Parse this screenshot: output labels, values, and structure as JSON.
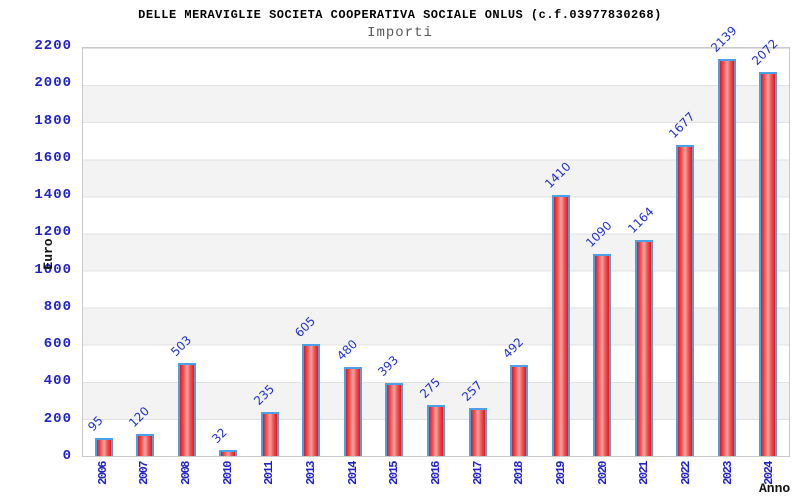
{
  "chart_data": {
    "type": "bar",
    "title": "DELLE MERAVIGLIE SOCIETA COOPERATIVA SOCIALE ONLUS (c.f.03977830268)",
    "subtitle": "Importi",
    "xlabel": "Anno",
    "ylabel": "Euro",
    "categories": [
      "2006",
      "2007",
      "2008",
      "2010",
      "2011",
      "2013",
      "2014",
      "2015",
      "2016",
      "2017",
      "2018",
      "2019",
      "2020",
      "2021",
      "2022",
      "2023",
      "2024"
    ],
    "values": [
      95,
      120,
      503,
      32,
      235,
      605,
      480,
      393,
      275,
      257,
      492,
      1410,
      1090,
      1164,
      1677,
      2139,
      2072
    ],
    "ylim": [
      0,
      2200
    ],
    "ytick_step": 200,
    "yticks": [
      0,
      200,
      400,
      600,
      800,
      1000,
      1200,
      1400,
      1600,
      1800,
      2000,
      2200
    ],
    "legend": "none",
    "grid": "horizontal-bands-alternating",
    "colors": {
      "bar_fill_edge": "#e41818",
      "bar_fill_mid": "#ee5252",
      "bar_fill_center": "#f7a4a4",
      "bar_border": "#4d9fe8",
      "axis_text": "#2222cc",
      "value_label_text": "#2233cc",
      "title_text": "#000000",
      "subtitle_text": "#5a5a5a"
    }
  }
}
